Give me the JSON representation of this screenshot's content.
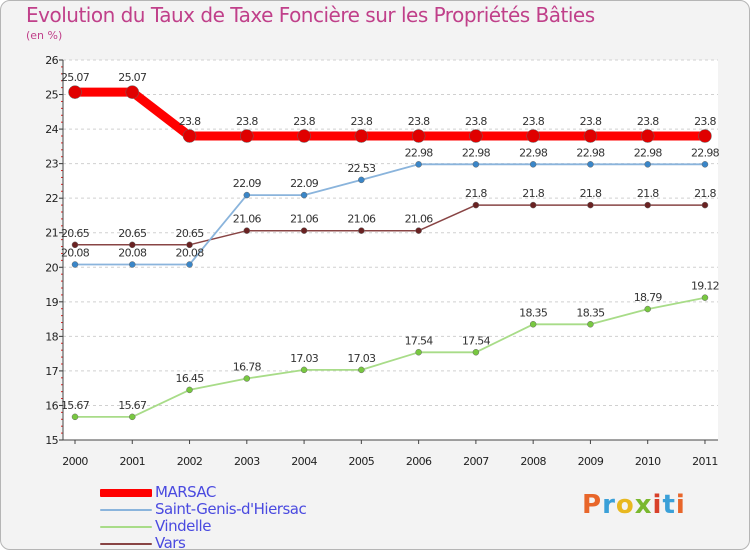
{
  "header": {
    "title": "Evolution du Taux de Taxe Foncière sur les Propriétés Bâties",
    "unit": "(en %)"
  },
  "logo": {
    "text": "Proxiti",
    "colors": [
      "#e8662a",
      "#3aa0d8",
      "#e8b820",
      "#7ab82e",
      "#d8402a",
      "#3aa0d8",
      "#e8662a"
    ]
  },
  "chart_data": {
    "type": "line",
    "title": "Evolution du Taux de Taxe Foncière sur les Propriétés Bâties",
    "ylabel": "(en %)",
    "xlabel": "",
    "ylim": [
      15,
      26
    ],
    "yticks": [
      15,
      16,
      17,
      18,
      19,
      20,
      21,
      22,
      23,
      24,
      25,
      26
    ],
    "categories": [
      "2000",
      "2001",
      "2002",
      "2003",
      "2004",
      "2005",
      "2006",
      "2007",
      "2008",
      "2009",
      "2010",
      "2011"
    ],
    "grid": "horizontal dashed",
    "legend_position": "bottom-left",
    "series": [
      {
        "name": "MARSAC",
        "color": "#ff0000",
        "marker_color": "#e00000",
        "values": [
          25.07,
          25.07,
          23.8,
          23.8,
          23.8,
          23.8,
          23.8,
          23.8,
          23.8,
          23.8,
          23.8,
          23.8
        ],
        "labels": [
          "25.07",
          "25.07",
          "23.8",
          "23.8",
          "23.8",
          "23.8",
          "23.8",
          "23.8",
          "23.8",
          "23.8",
          "23.8",
          "23.8"
        ]
      },
      {
        "name": "Saint-Genis-d'Hiersac",
        "color": "#8ab4dc",
        "marker_color": "#3a86c8",
        "values": [
          20.08,
          20.08,
          20.08,
          22.09,
          22.09,
          22.53,
          22.98,
          22.98,
          22.98,
          22.98,
          22.98,
          22.98
        ],
        "labels": [
          "20.08",
          "20.08",
          "20.08",
          "22.09",
          "22.09",
          "22.53",
          "22.98",
          "22.98",
          "22.98",
          "22.98",
          "22.98",
          "22.98"
        ]
      },
      {
        "name": "Vindelle",
        "color": "#a8dc88",
        "marker_color": "#78c840",
        "values": [
          15.67,
          15.67,
          16.45,
          16.78,
          17.03,
          17.03,
          17.54,
          17.54,
          18.35,
          18.35,
          18.79,
          19.12
        ],
        "labels": [
          "15.67",
          "15.67",
          "16.45",
          "16.78",
          "17.03",
          "17.03",
          "17.54",
          "17.54",
          "18.35",
          "18.35",
          "18.79",
          "19.12"
        ]
      },
      {
        "name": "Vars",
        "color": "#884444",
        "marker_color": "#6a2222",
        "values": [
          20.65,
          20.65,
          20.65,
          21.06,
          21.06,
          21.06,
          21.06,
          21.8,
          21.8,
          21.8,
          21.8,
          21.8
        ],
        "labels": [
          "20.65",
          "20.65",
          "20.65",
          "21.06",
          "21.06",
          "21.06",
          "21.06",
          "21.8",
          "21.8",
          "21.8",
          "21.8",
          "21.8"
        ]
      }
    ]
  }
}
